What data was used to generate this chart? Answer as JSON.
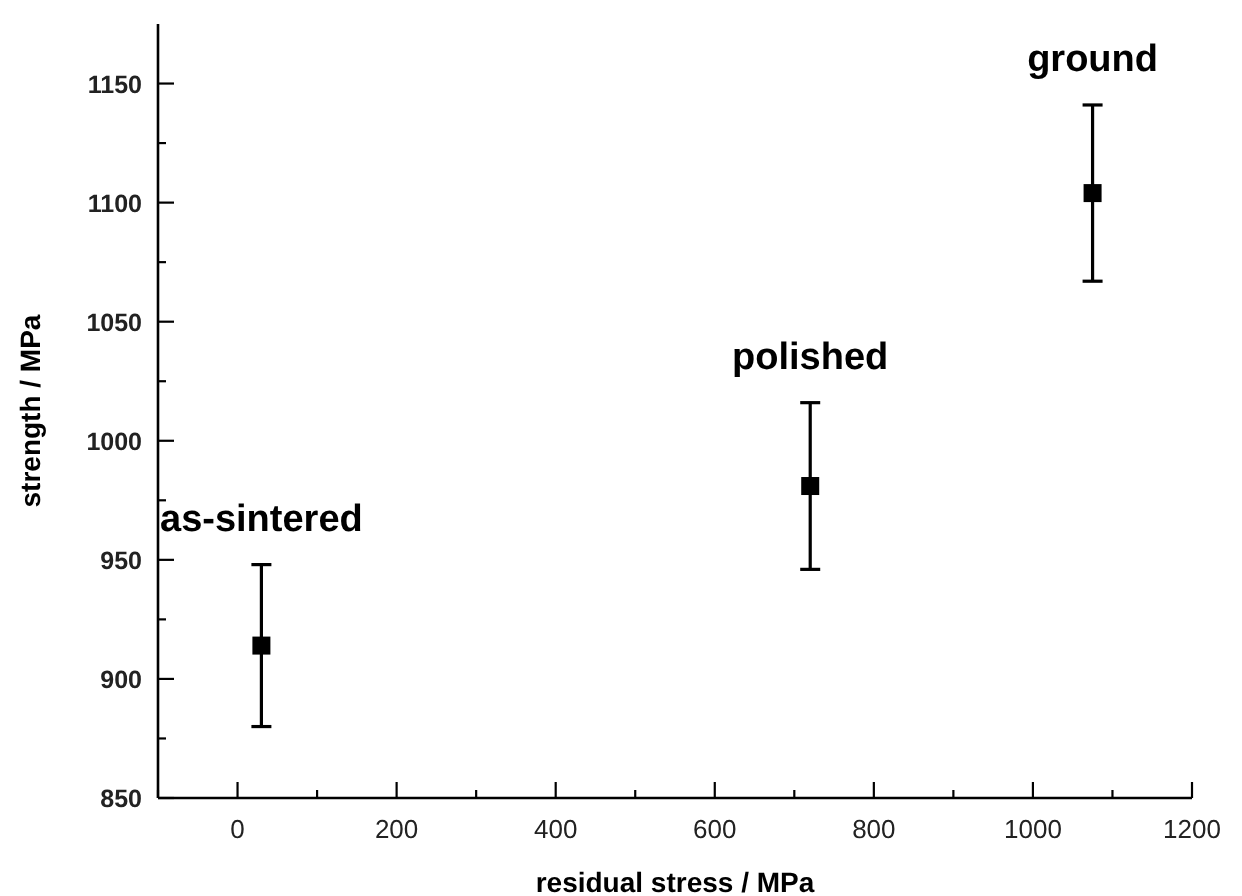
{
  "chart_data": {
    "type": "scatter",
    "xlabel": "residual stress / MPa",
    "ylabel": "strength / MPa",
    "x": [
      30,
      720,
      1075
    ],
    "values": [
      914,
      981,
      1104
    ],
    "errors": [
      34,
      35,
      37
    ],
    "color": "#000000",
    "marker": "square",
    "xlim": [
      -100,
      1200
    ],
    "xticks": [
      {
        "value": -100,
        "label": null
      },
      0,
      {
        "value": 100,
        "label": null
      },
      200,
      {
        "value": 300,
        "label": null
      },
      400,
      {
        "value": 500,
        "label": null
      },
      600,
      {
        "value": 700,
        "label": null
      },
      800,
      {
        "value": 900,
        "label": null
      },
      1000,
      {
        "value": 1100,
        "label": null
      },
      1200
    ],
    "ylim": [
      850,
      1175
    ],
    "yticks": [
      850,
      {
        "value": 875,
        "label": null
      },
      900,
      {
        "value": 925,
        "label": null
      },
      950,
      {
        "value": 975,
        "label": null
      },
      1000,
      {
        "value": 1025,
        "label": null
      },
      1050,
      {
        "value": 1075,
        "label": null
      },
      1100,
      {
        "value": 1125,
        "label": null
      },
      1150
    ],
    "annotations": [
      {
        "text": "as-sintered",
        "x": 30,
        "y": 914
      },
      {
        "text": "polished",
        "x": 720,
        "y": 981
      },
      {
        "text": "ground",
        "x": 1075,
        "y": 1104
      }
    ],
    "grid": false
  }
}
